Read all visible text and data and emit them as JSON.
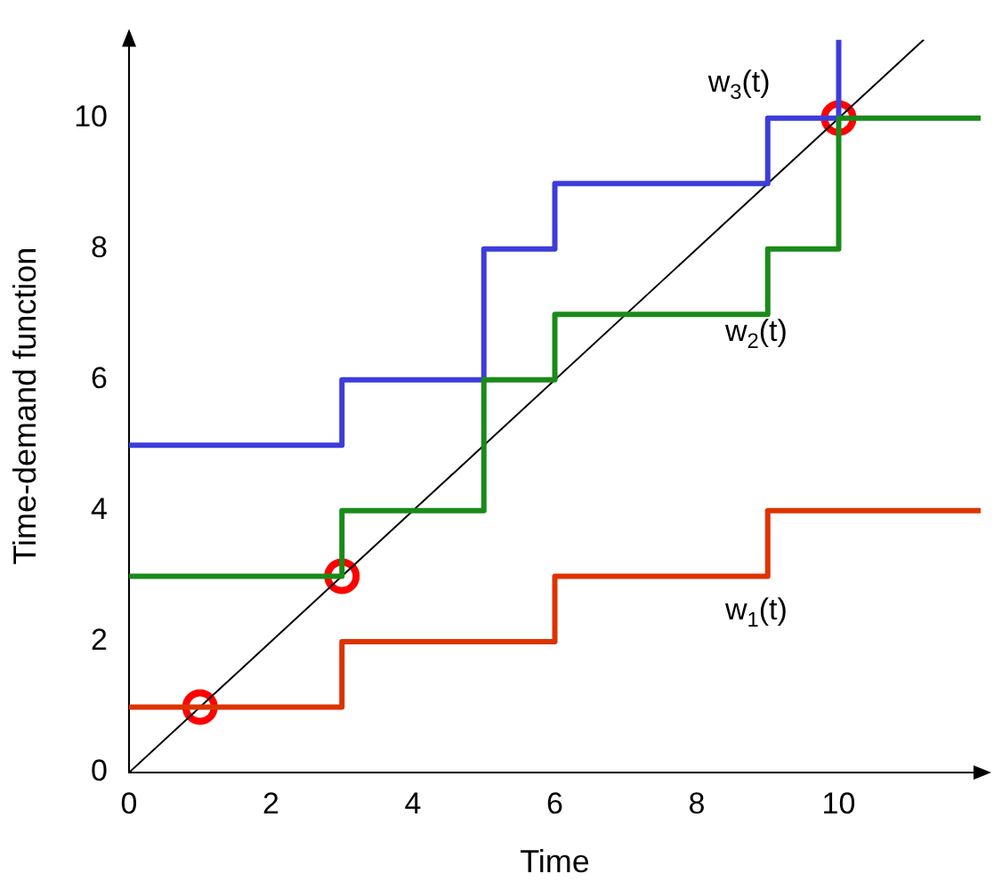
{
  "chart_data": {
    "type": "step",
    "xlabel": "Time",
    "ylabel": "Time-demand function",
    "xlim": [
      0,
      12
    ],
    "ylim": [
      0,
      11.2
    ],
    "xticks": [
      0,
      2,
      4,
      6,
      8,
      10
    ],
    "yticks": [
      0,
      2,
      4,
      6,
      8,
      10
    ],
    "grid": false,
    "legend": false,
    "series": [
      {
        "name": "w$_{1}$(t)",
        "color": "#dd3300",
        "x": [
          0,
          3,
          6,
          9,
          12
        ],
        "values": [
          1,
          2,
          3,
          4,
          4
        ]
      },
      {
        "name": "w$_{2}$(t)",
        "color": "#1a8a1a",
        "x": [
          0,
          3,
          5,
          6,
          9,
          10,
          12
        ],
        "values": [
          3,
          4,
          6,
          7,
          8,
          10,
          10
        ]
      },
      {
        "name": "w$_{3}$(t)",
        "color": "#3c3cdc",
        "x": [
          0,
          3,
          5,
          6,
          9,
          10,
          10
        ],
        "values": [
          5,
          6,
          8,
          9,
          10,
          10,
          11.2
        ]
      },
      {
        "type": "line",
        "color": "#000000",
        "x": [
          0,
          11.2
        ],
        "values": [
          0,
          11.2
        ],
        "marker": "none"
      },
      {
        "type": "scatter",
        "color": "#ff0000",
        "x": [
          1,
          3,
          10
        ],
        "values": [
          1,
          3,
          10
        ],
        "marker": "circle"
      }
    ]
  }
}
